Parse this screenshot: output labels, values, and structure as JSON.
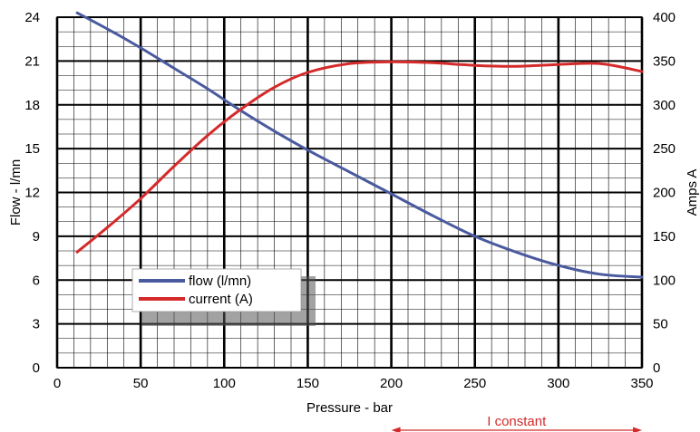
{
  "chart_data": {
    "type": "line",
    "xlabel": "Pressure - bar",
    "ylabel_left": "Flow - l/mn",
    "ylabel_right": "Amps A",
    "xlim": [
      0,
      350
    ],
    "ylim_left": [
      0,
      24
    ],
    "ylim_right": [
      0,
      400
    ],
    "x_ticks": [
      "0",
      "50",
      "100",
      "150",
      "200",
      "250",
      "300",
      "350"
    ],
    "y_left_ticks": [
      "0",
      "3",
      "6",
      "9",
      "12",
      "15",
      "18",
      "21",
      "24"
    ],
    "y_right_ticks": [
      "0",
      "50",
      "100",
      "150",
      "200",
      "250",
      "300",
      "350",
      "400"
    ],
    "grid": true,
    "legend_position": "lower-left",
    "series": [
      {
        "name": "flow (l/mn)",
        "axis": "left",
        "color": "#4a5a9e",
        "x": [
          12,
          30,
          50,
          70,
          90,
          110,
          130,
          150,
          175,
          200,
          225,
          250,
          275,
          300,
          325,
          350
        ],
        "y": [
          24.3,
          23.2,
          21.9,
          20.5,
          19.1,
          17.6,
          16.2,
          14.9,
          13.4,
          11.9,
          10.4,
          9.0,
          7.9,
          7.0,
          6.4,
          6.2
        ]
      },
      {
        "name": "current (A)",
        "axis": "right",
        "color": "#d42a2a",
        "x": [
          12,
          30,
          50,
          70,
          90,
          110,
          130,
          150,
          175,
          200,
          225,
          250,
          275,
          300,
          325,
          350
        ],
        "y": [
          132,
          160,
          193,
          230,
          265,
          295,
          320,
          337,
          347,
          349,
          348,
          345,
          344,
          346,
          347,
          338
        ]
      }
    ],
    "annotation": {
      "text": "I constant",
      "color": "#d42a2a",
      "x_from": 200,
      "x_to": 350
    }
  }
}
